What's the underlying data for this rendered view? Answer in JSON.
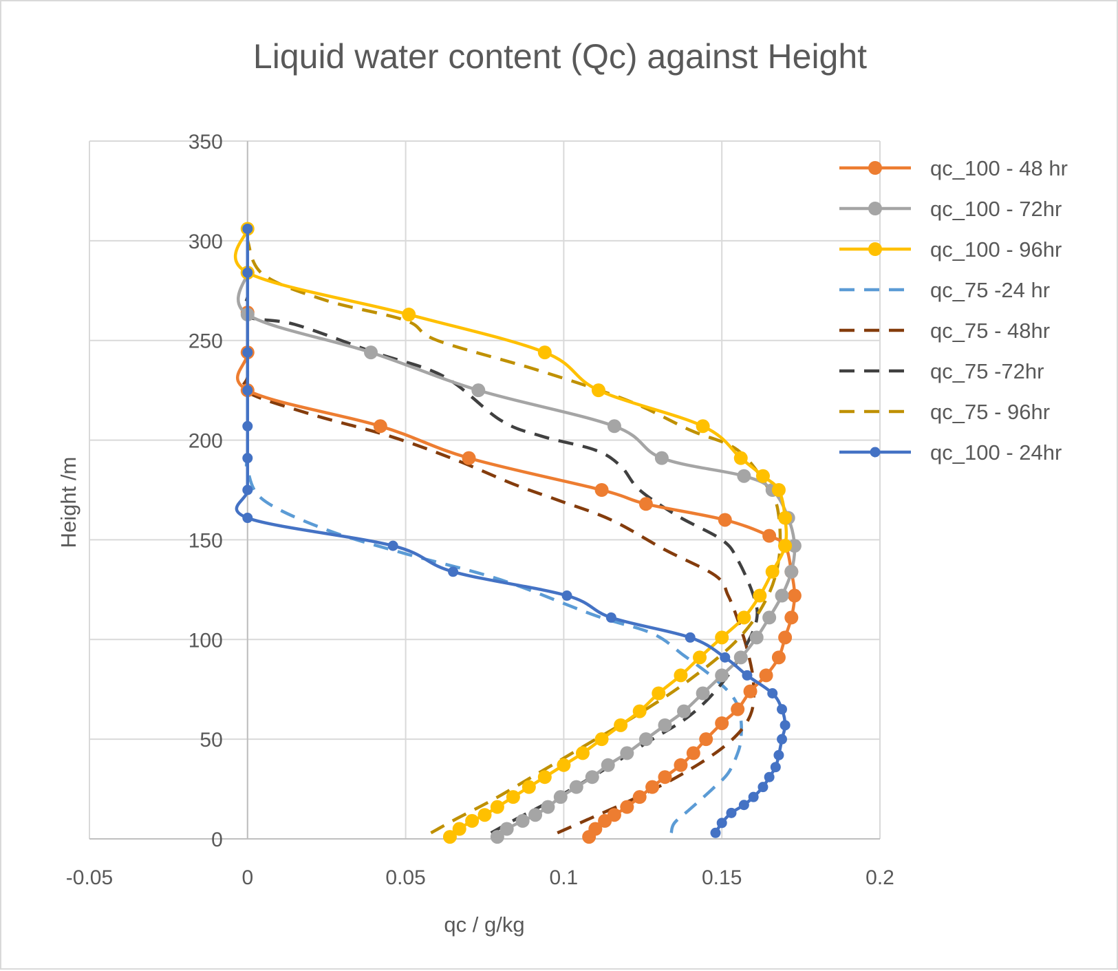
{
  "chart_data": {
    "type": "line",
    "title": "Liquid water content (Qc) against Height",
    "xlabel": "qc / g/kg",
    "ylabel": "Height /m",
    "xlim": [
      -0.05,
      0.2
    ],
    "ylim": [
      0,
      350
    ],
    "xticks": [
      -0.05,
      0,
      0.05,
      0.1,
      0.15,
      0.2
    ],
    "xtick_labels": [
      "-0.05",
      "0",
      "0.05",
      "0.1",
      "0.15",
      "0.2"
    ],
    "yticks": [
      0,
      50,
      100,
      150,
      200,
      250,
      300,
      350
    ],
    "ytick_labels": [
      "0",
      "50",
      "100",
      "150",
      "200",
      "250",
      "300",
      "350"
    ],
    "grid": true,
    "legend_position": "right",
    "series": [
      {
        "name": "qc_100 - 48 hr",
        "color": "#ED7D31",
        "style": "solid-markers",
        "x": [
          0.108,
          0.11,
          0.113,
          0.116,
          0.12,
          0.124,
          0.128,
          0.132,
          0.137,
          0.141,
          0.145,
          0.15,
          0.155,
          0.159,
          0.164,
          0.168,
          0.17,
          0.172,
          0.173,
          0.172,
          0.17,
          0.165,
          0.151,
          0.126,
          0.112,
          0.07,
          0.042,
          0.0,
          0.0,
          0.0
        ],
        "y": [
          1,
          5,
          9,
          12,
          16,
          21,
          26,
          31,
          37,
          43,
          50,
          58,
          65,
          74,
          82,
          91,
          101,
          111,
          122,
          134,
          147,
          152,
          160,
          168,
          175,
          191,
          207,
          225,
          244,
          264
        ]
      },
      {
        "name": "qc_100 - 72hr",
        "color": "#A5A5A5",
        "style": "solid-markers",
        "x": [
          0.079,
          0.082,
          0.087,
          0.091,
          0.095,
          0.099,
          0.104,
          0.109,
          0.114,
          0.12,
          0.126,
          0.132,
          0.138,
          0.144,
          0.15,
          0.156,
          0.161,
          0.165,
          0.169,
          0.172,
          0.173,
          0.171,
          0.166,
          0.157,
          0.131,
          0.116,
          0.073,
          0.039,
          0.0,
          0.0
        ],
        "y": [
          1,
          5,
          9,
          12,
          16,
          21,
          26,
          31,
          37,
          43,
          50,
          57,
          64,
          73,
          82,
          91,
          101,
          111,
          122,
          134,
          147,
          161,
          175,
          182,
          191,
          207,
          225,
          244,
          263,
          284
        ]
      },
      {
        "name": "qc_100 - 96hr",
        "color": "#FFC000",
        "style": "solid-markers",
        "x": [
          0.064,
          0.067,
          0.071,
          0.075,
          0.079,
          0.084,
          0.089,
          0.094,
          0.1,
          0.106,
          0.112,
          0.118,
          0.124,
          0.13,
          0.137,
          0.143,
          0.15,
          0.157,
          0.162,
          0.166,
          0.17,
          0.17,
          0.168,
          0.163,
          0.156,
          0.144,
          0.111,
          0.094,
          0.051,
          0.0,
          0.0
        ],
        "y": [
          1,
          5,
          9,
          12,
          16,
          21,
          26,
          31,
          37,
          43,
          50,
          57,
          64,
          73,
          82,
          91,
          101,
          111,
          122,
          134,
          147,
          161,
          175,
          182,
          191,
          207,
          225,
          244,
          263,
          284,
          306
        ]
      },
      {
        "name": "qc_75 -24 hr",
        "color": "#5B9BD5",
        "style": "dashed",
        "x": [
          0.134,
          0.135,
          0.14,
          0.147,
          0.152,
          0.155,
          0.156,
          0.156,
          0.154,
          0.148,
          0.138,
          0.128,
          0.11,
          0.08,
          0.05,
          0.025,
          0.005,
          0.0,
          0.0
        ],
        "y": [
          3,
          8,
          15,
          25,
          33,
          43,
          50,
          60,
          70,
          80,
          92,
          103,
          112,
          130,
          143,
          155,
          170,
          185,
          190
        ]
      },
      {
        "name": "qc_75 - 48hr",
        "color": "#843C0C",
        "style": "dashed",
        "x": [
          0.098,
          0.108,
          0.122,
          0.138,
          0.152,
          0.159,
          0.16,
          0.158,
          0.155,
          0.152,
          0.148,
          0.132,
          0.115,
          0.098,
          0.084,
          0.066,
          0.045,
          0.02,
          0.0,
          0.0,
          0.0
        ],
        "y": [
          3,
          10,
          20,
          33,
          48,
          62,
          78,
          95,
          110,
          122,
          132,
          145,
          160,
          170,
          178,
          190,
          202,
          213,
          224,
          232,
          245
        ]
      },
      {
        "name": "qc_75 -72hr",
        "color": "#404040",
        "style": "dashed",
        "x": [
          0.077,
          0.085,
          0.097,
          0.111,
          0.126,
          0.14,
          0.15,
          0.157,
          0.161,
          0.16,
          0.155,
          0.15,
          0.136,
          0.124,
          0.118,
          0.11,
          0.093,
          0.08,
          0.062,
          0.04,
          0.015,
          0.0,
          0.0
        ],
        "y": [
          3,
          10,
          20,
          33,
          48,
          62,
          78,
          95,
          110,
          122,
          140,
          150,
          162,
          175,
          187,
          195,
          202,
          210,
          232,
          244,
          258,
          262,
          272
        ]
      },
      {
        "name": "qc_75 - 96hr",
        "color": "#BF9000",
        "style": "dashed",
        "x": [
          0.058,
          0.066,
          0.078,
          0.092,
          0.108,
          0.124,
          0.14,
          0.155,
          0.164,
          0.168,
          0.168,
          0.165,
          0.155,
          0.14,
          0.12,
          0.092,
          0.06,
          0.05,
          0.025,
          0.005,
          0.0
        ],
        "y": [
          3,
          10,
          20,
          33,
          48,
          63,
          80,
          100,
          120,
          140,
          162,
          175,
          195,
          205,
          220,
          235,
          250,
          260,
          270,
          283,
          300
        ]
      },
      {
        "name": "qc_100 - 24hr",
        "color": "#4472C4",
        "style": "solid-markers",
        "x": [
          0.148,
          0.15,
          0.153,
          0.157,
          0.16,
          0.163,
          0.165,
          0.167,
          0.168,
          0.169,
          0.17,
          0.169,
          0.166,
          0.158,
          0.151,
          0.14,
          0.115,
          0.101,
          0.065,
          0.046,
          0.0,
          0.0,
          0.0,
          0.0,
          0.0,
          0.0,
          0.0,
          0.0
        ],
        "y": [
          3,
          8,
          13,
          17,
          21,
          26,
          31,
          36,
          42,
          50,
          57,
          65,
          73,
          82,
          91,
          101,
          111,
          122,
          134,
          147,
          161,
          175,
          191,
          207,
          225,
          244,
          284,
          306
        ]
      }
    ]
  }
}
